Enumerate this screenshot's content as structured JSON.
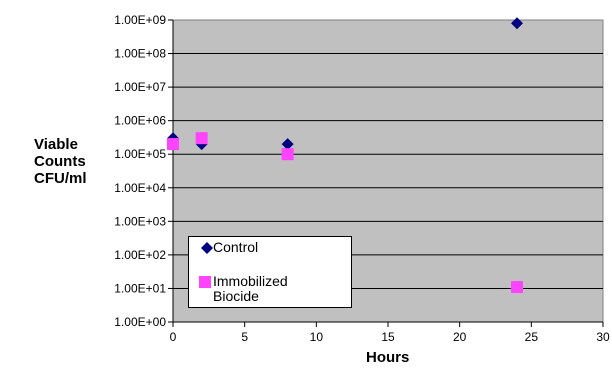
{
  "chart_data": {
    "type": "scatter",
    "title": "",
    "xlabel": "Hours",
    "ylabel_lines": [
      "Viable",
      "Counts",
      "CFU/ml"
    ],
    "x_scale": "linear",
    "y_scale": "log",
    "xlim": [
      0,
      30
    ],
    "ylim": [
      1,
      1000000000
    ],
    "x_ticks": [
      "0",
      "5",
      "10",
      "15",
      "20",
      "25",
      "30"
    ],
    "y_ticks": [
      "1.00E+00",
      "1.00E+01",
      "1.00E+02",
      "1.00E+03",
      "1.00E+04",
      "1.00E+05",
      "1.00E+06",
      "1.00E+07",
      "1.00E+08",
      "1.00E+09"
    ],
    "grid": {
      "horizontal": true,
      "vertical": false
    },
    "plot_background": "#c0c0c0",
    "series": [
      {
        "name": "Control",
        "marker": "diamond",
        "color": "#000080",
        "points": [
          [
            0,
            300000
          ],
          [
            2,
            200000
          ],
          [
            8,
            200000
          ],
          [
            24,
            800000000
          ]
        ]
      },
      {
        "name": "Immobilized Biocide",
        "marker": "square",
        "color": "#ff44ff",
        "points": [
          [
            0,
            200000
          ],
          [
            2,
            300000
          ],
          [
            8,
            100000
          ],
          [
            24,
            11
          ]
        ]
      }
    ],
    "legend": {
      "position": "lower-left",
      "entries": [
        {
          "line1": "Control",
          "line2": ""
        },
        {
          "line1": "Immobilized",
          "line2": "Biocide"
        }
      ]
    }
  }
}
